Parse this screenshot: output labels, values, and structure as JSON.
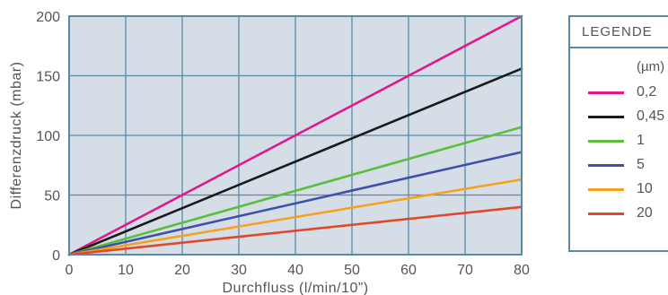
{
  "chart_data": {
    "type": "line",
    "x": [
      0,
      80
    ],
    "series": [
      {
        "name": "0,2",
        "values": [
          0,
          200
        ],
        "color": "#e0198a"
      },
      {
        "name": "0,45",
        "values": [
          0,
          156
        ],
        "color": "#1a1a1a"
      },
      {
        "name": "1",
        "values": [
          0,
          107
        ],
        "color": "#5bbf3b"
      },
      {
        "name": "5",
        "values": [
          0,
          86
        ],
        "color": "#3f51a8"
      },
      {
        "name": "10",
        "values": [
          0,
          63
        ],
        "color": "#f2a221"
      },
      {
        "name": "20",
        "values": [
          0,
          40
        ],
        "color": "#e0482a"
      }
    ],
    "xlabel": "Durchfluss (l/min/10”)",
    "ylabel": "Differenzdruck (mbar)",
    "xlim": [
      0,
      80
    ],
    "ylim": [
      0,
      200
    ],
    "xticks": [
      "0",
      "10",
      "20",
      "30",
      "40",
      "50",
      "60",
      "70",
      "80"
    ],
    "yticks": [
      "0",
      "50",
      "100",
      "150",
      "200"
    ],
    "grid": true,
    "legend_position": "right",
    "colors": {
      "plot_background": "#d5dde7",
      "grid": "#5b8aa8",
      "frame": "#5b8aa8"
    }
  },
  "legend": {
    "title": "LEGENDE",
    "unit": "(µm)"
  }
}
